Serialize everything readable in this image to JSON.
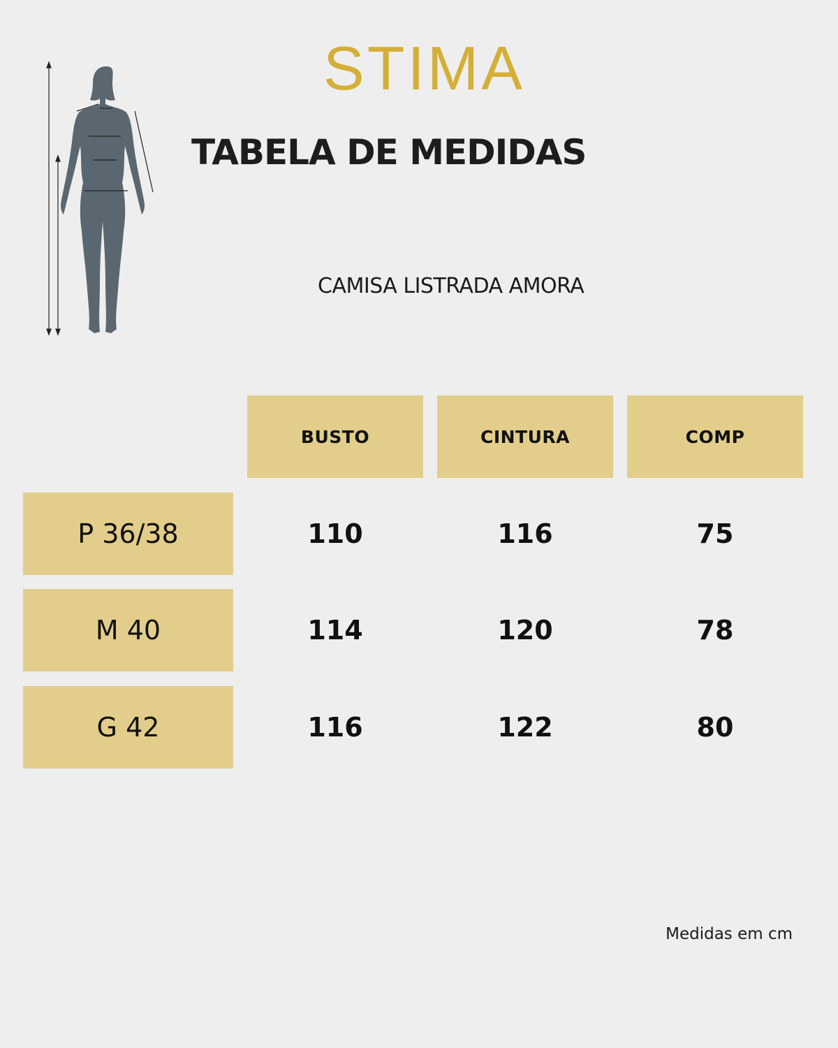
{
  "brand": {
    "name": "STIMA",
    "color": "#d4af37"
  },
  "title": "TABELA DE MEDIDAS",
  "product": "CAMISA LISTRADA AMORA",
  "table": {
    "columns": [
      "BUSTO",
      "CINTURA",
      "COMP"
    ],
    "rows": [
      {
        "size": "P 36/38",
        "values": [
          "110",
          "116",
          "75"
        ]
      },
      {
        "size": "M 40",
        "values": [
          "114",
          "120",
          "78"
        ]
      },
      {
        "size": "G 42",
        "values": [
          "116",
          "122",
          "80"
        ]
      }
    ]
  },
  "note": "Medidas em cm",
  "colors": {
    "background": "#eeeeee",
    "cell": "#e2cd8a",
    "figure": "#5b6770"
  },
  "figure_icon": "female-body-measurement-icon"
}
